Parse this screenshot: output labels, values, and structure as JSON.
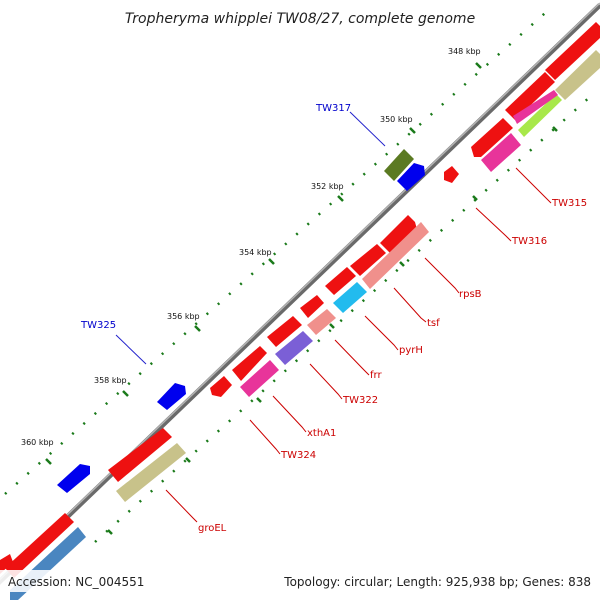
{
  "title": "Tropheryma whipplei TW08/27, complete genome",
  "footer": {
    "accession": "Accession: NC_004551",
    "summary": "Topology: circular; Length: 925,938 bp; Genes: 838"
  },
  "scale_labels": [
    "348 kbp",
    "350 kbp",
    "352 kbp",
    "354 kbp",
    "356 kbp",
    "358 kbp",
    "360 kbp"
  ],
  "genes": {
    "TW317": "TW317",
    "TW325": "TW325",
    "TW315": "TW315",
    "TW316": "TW316",
    "rpsB": "rpsB",
    "tsf": "tsf",
    "pyrH": "pyrH",
    "frr": "frr",
    "TW322": "TW322",
    "xthA1": "xthA1",
    "TW324": "TW324",
    "groEL": "groEL"
  },
  "colors": {
    "backbone": "#8a8a8a",
    "forward_label": "#0000cc",
    "reverse_label": "#cc0000",
    "tick": "#1a7a1a"
  }
}
